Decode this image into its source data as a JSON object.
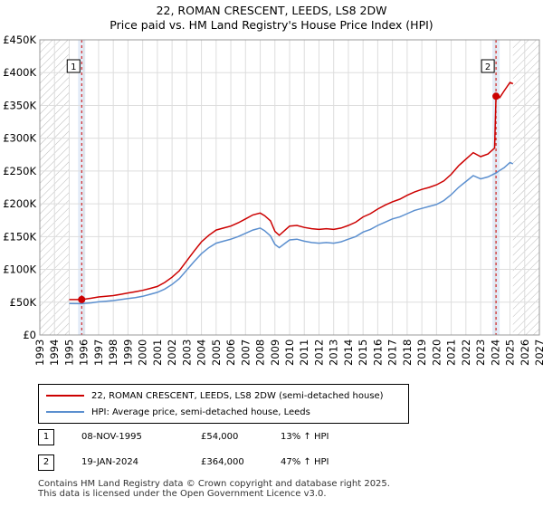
{
  "title_line1": "22, ROMAN CRESCENT, LEEDS, LS8 2DW",
  "title_line2": "Price paid vs. HM Land Registry's House Price Index (HPI)",
  "chart_data": {
    "type": "line",
    "title": "22, ROMAN CRESCENT, LEEDS, LS8 2DW — Price paid vs. HM Land Registry's House Price Index (HPI)",
    "xlim": [
      1993,
      2027
    ],
    "ylim": [
      0,
      450000
    ],
    "y_ticks": [
      0,
      50000,
      100000,
      150000,
      200000,
      250000,
      300000,
      350000,
      400000,
      450000
    ],
    "y_tick_labels": [
      "£0",
      "£50K",
      "£100K",
      "£150K",
      "£200K",
      "£250K",
      "£300K",
      "£350K",
      "£400K",
      "£450K"
    ],
    "x_ticks": [
      1993,
      1994,
      1995,
      1996,
      1997,
      1998,
      1999,
      2000,
      2001,
      2002,
      2003,
      2004,
      2005,
      2006,
      2007,
      2008,
      2009,
      2010,
      2011,
      2012,
      2013,
      2014,
      2015,
      2016,
      2017,
      2018,
      2019,
      2020,
      2021,
      2022,
      2023,
      2024,
      2025,
      2026,
      2027
    ],
    "hatched_before": 1995.0,
    "hatched_after": 2025.2,
    "colors": {
      "property": "#cc0000",
      "hpi": "#5b8fcf",
      "grid": "#dddddd",
      "hatch": "#bbbbbb",
      "shade": "#dce6f5"
    },
    "series": [
      {
        "name": "22, ROMAN CRESCENT, LEEDS, LS8 2DW (semi-detached house)",
        "color": "#cc0000",
        "x": [
          1995.0,
          1995.85,
          1996.5,
          1997,
          1997.5,
          1998,
          1998.5,
          1999,
          1999.5,
          2000,
          2000.5,
          2001,
          2001.5,
          2002,
          2002.5,
          2003,
          2003.5,
          2004,
          2004.5,
          2005,
          2005.5,
          2006,
          2006.5,
          2007,
          2007.5,
          2008,
          2008.3,
          2008.7,
          2009,
          2009.3,
          2009.7,
          2010,
          2010.5,
          2011,
          2011.5,
          2012,
          2012.5,
          2013,
          2013.5,
          2014,
          2014.5,
          2015,
          2015.5,
          2016,
          2016.5,
          2017,
          2017.5,
          2018,
          2018.5,
          2019,
          2019.5,
          2020,
          2020.5,
          2021,
          2021.5,
          2022,
          2022.5,
          2023,
          2023.5,
          2023.95,
          2024.05,
          2024.3,
          2024.6,
          2025,
          2025.2
        ],
        "values": [
          54000,
          54000,
          56000,
          58000,
          59000,
          60000,
          62000,
          64000,
          66000,
          68000,
          71000,
          74000,
          80000,
          88000,
          98000,
          113000,
          128000,
          142000,
          152000,
          160000,
          163000,
          166000,
          171000,
          177000,
          183000,
          186000,
          182000,
          174000,
          158000,
          152000,
          160000,
          166000,
          167000,
          164000,
          162000,
          161000,
          162000,
          161000,
          163000,
          167000,
          172000,
          180000,
          185000,
          192000,
          198000,
          203000,
          207000,
          213000,
          218000,
          222000,
          225000,
          229000,
          235000,
          245000,
          258000,
          268000,
          278000,
          272000,
          276000,
          285000,
          364000,
          362000,
          372000,
          385000,
          383000
        ]
      },
      {
        "name": "HPI: Average price, semi-detached house, Leeds",
        "color": "#5b8fcf",
        "x": [
          1995.0,
          1995.85,
          1996.5,
          1997,
          1997.5,
          1998,
          1998.5,
          1999,
          1999.5,
          2000,
          2000.5,
          2001,
          2001.5,
          2002,
          2002.5,
          2003,
          2003.5,
          2004,
          2004.5,
          2005,
          2005.5,
          2006,
          2006.5,
          2007,
          2007.5,
          2008,
          2008.3,
          2008.7,
          2009,
          2009.3,
          2009.7,
          2010,
          2010.5,
          2011,
          2011.5,
          2012,
          2012.5,
          2013,
          2013.5,
          2014,
          2014.5,
          2015,
          2015.5,
          2016,
          2016.5,
          2017,
          2017.5,
          2018,
          2018.5,
          2019,
          2019.5,
          2020,
          2020.5,
          2021,
          2021.5,
          2022,
          2022.5,
          2023,
          2023.5,
          2023.95,
          2024.05,
          2024.3,
          2024.6,
          2025,
          2025.2
        ],
        "values": [
          48000,
          47800,
          49000,
          50500,
          51500,
          52500,
          54000,
          55500,
          57000,
          59000,
          62000,
          65000,
          70000,
          77000,
          86000,
          99000,
          112000,
          124000,
          133000,
          140000,
          143000,
          146000,
          150000,
          155000,
          160000,
          163000,
          159000,
          151000,
          138000,
          133000,
          140000,
          145000,
          146000,
          143000,
          141000,
          140000,
          141000,
          140000,
          142000,
          146000,
          150000,
          157000,
          161000,
          167000,
          172000,
          177000,
          180000,
          185000,
          190000,
          193000,
          196000,
          199000,
          205000,
          214000,
          225000,
          234000,
          243000,
          238000,
          241000,
          246000,
          247000,
          251000,
          255000,
          263000,
          261000
        ]
      }
    ],
    "sale_markers": [
      {
        "label": "1",
        "x": 1995.85,
        "value": 54000
      },
      {
        "label": "2",
        "x": 2024.05,
        "value": 364000
      }
    ]
  },
  "legend": {
    "property_label": "22, ROMAN CRESCENT, LEEDS, LS8 2DW (semi-detached house)",
    "hpi_label": "HPI: Average price, semi-detached house, Leeds"
  },
  "sales": [
    {
      "num": "1",
      "date": "08-NOV-1995",
      "price": "£54,000",
      "hpi": "13% ↑ HPI"
    },
    {
      "num": "2",
      "date": "19-JAN-2024",
      "price": "£364,000",
      "hpi": "47% ↑ HPI"
    }
  ],
  "footer": {
    "line1": "Contains HM Land Registry data © Crown copyright and database right 2025.",
    "line2": "This data is licensed under the Open Government Licence v3.0."
  }
}
